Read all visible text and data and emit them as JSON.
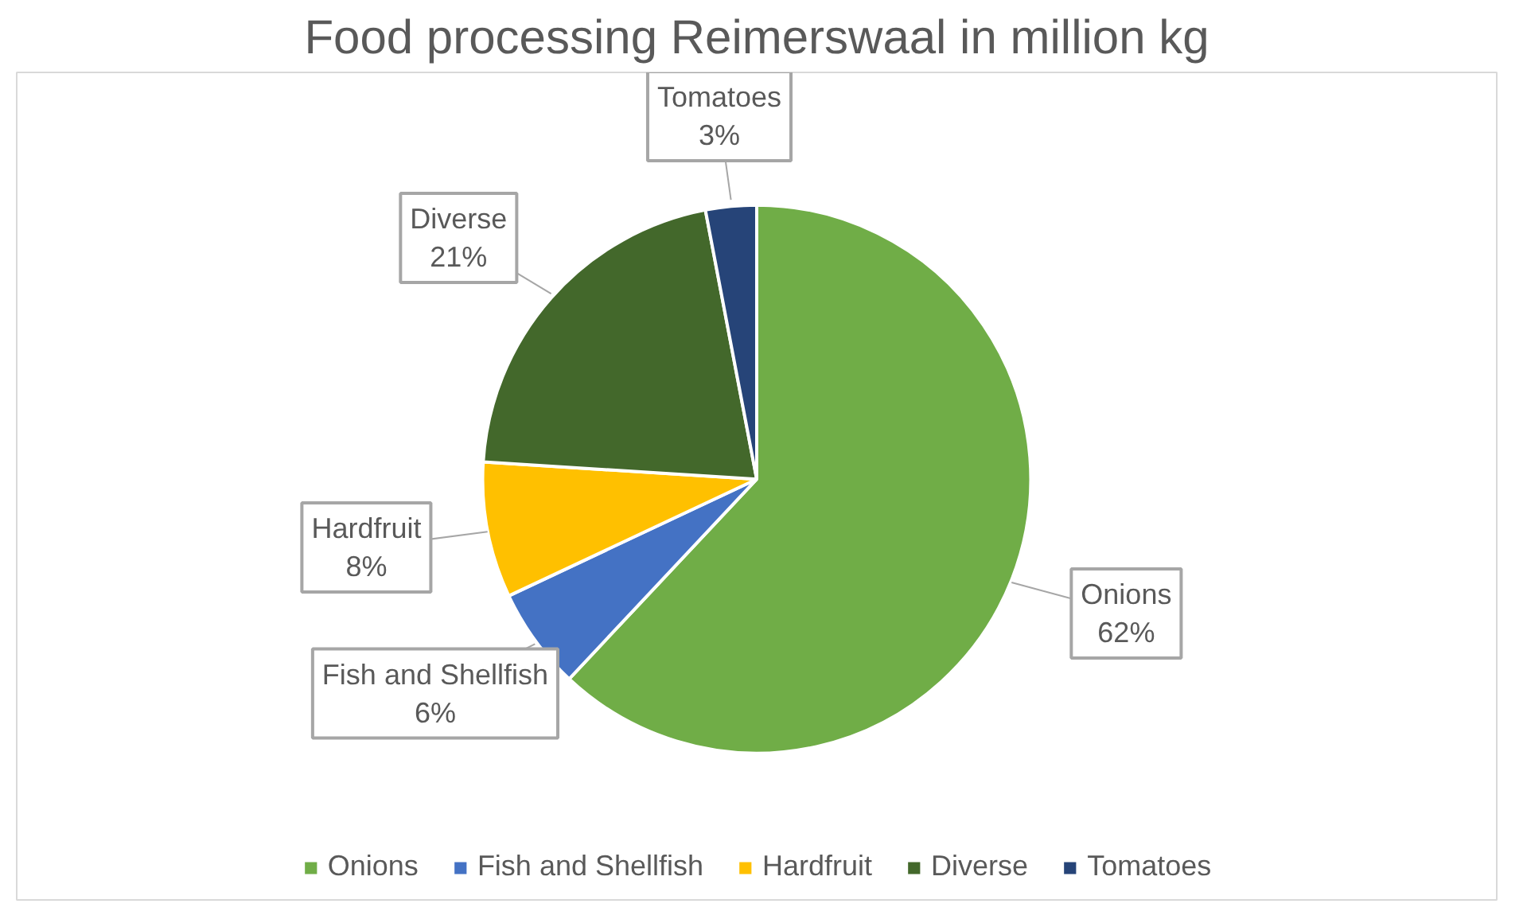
{
  "chart_data": {
    "type": "pie",
    "title": "Food processing Reimerswaal in million kg",
    "categories": [
      "Onions",
      "Fish and Shellfish",
      "Hardfruit",
      "Diverse",
      "Tomatoes"
    ],
    "values": [
      62,
      6,
      8,
      21,
      3
    ],
    "value_labels": [
      "62%",
      "6%",
      "8%",
      "21%",
      "3%"
    ],
    "colors": [
      "#70ad47",
      "#4472c4",
      "#ffc000",
      "#43682b",
      "#264478"
    ],
    "legend": "bottom"
  }
}
